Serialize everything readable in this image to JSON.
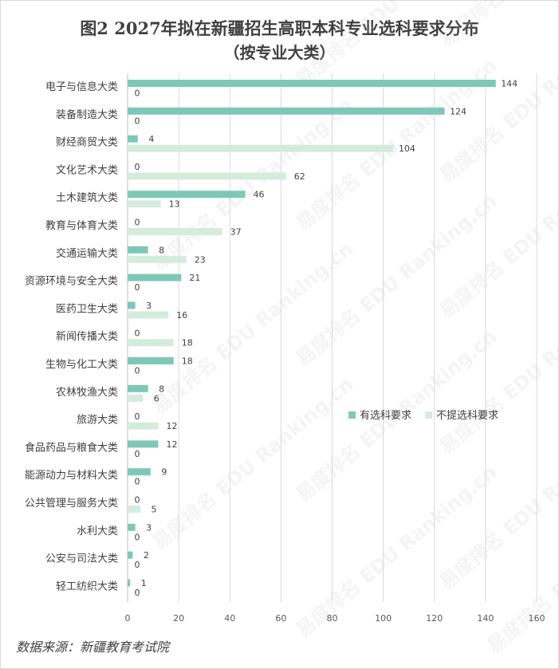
{
  "chart_data": {
    "type": "bar",
    "orientation": "horizontal",
    "title": "图2 2027年拟在新疆招生高职本科专业选科要求分布",
    "subtitle": "（按专业大类）",
    "categories": [
      "电子与信息大类",
      "装备制造大类",
      "财经商贸大类",
      "文化艺术大类",
      "土木建筑大类",
      "教育与体育大类",
      "交通运输大类",
      "资源环境与安全大类",
      "医药卫生大类",
      "新闻传播大类",
      "生物与化工大类",
      "农林牧渔大类",
      "旅游大类",
      "食品药品与粮食大类",
      "能源动力与材料大类",
      "公共管理与服务大类",
      "水利大类",
      "公安与司法大类",
      "轻工纺织大类"
    ],
    "series": [
      {
        "name": "有选科要求",
        "color": "#7ec8b8",
        "values": [
          144,
          124,
          4,
          0,
          46,
          0,
          8,
          21,
          3,
          0,
          18,
          8,
          0,
          12,
          9,
          0,
          3,
          2,
          1
        ]
      },
      {
        "name": "不提选科要求",
        "color": "#d4ecdb",
        "values": [
          0,
          0,
          104,
          62,
          13,
          37,
          23,
          0,
          16,
          18,
          0,
          6,
          12,
          0,
          0,
          5,
          0,
          0,
          0
        ]
      }
    ],
    "xlim": [
      0,
      160
    ],
    "xticks": [
      0,
      20,
      40,
      60,
      80,
      100,
      120,
      140,
      160
    ],
    "grid": true,
    "legend_position": "right"
  },
  "source_note": "数据来源：新疆教育考试院",
  "watermark": "易度排名 EDU Ranking.cn"
}
